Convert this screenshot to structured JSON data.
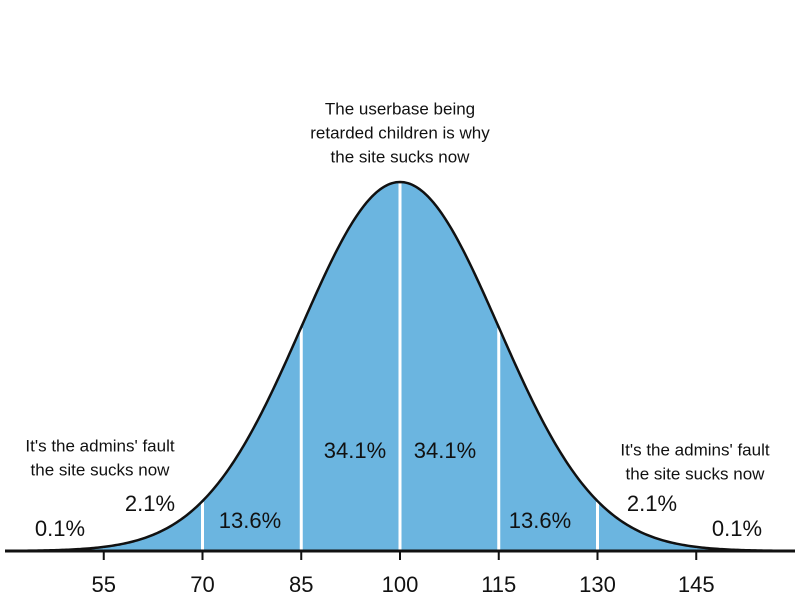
{
  "chart_data": {
    "type": "bell",
    "xlim": [
      40,
      160
    ],
    "xticks": [
      55,
      70,
      85,
      100,
      115,
      130,
      145
    ],
    "regions": {
      "values": [
        0.1,
        2.1,
        13.6,
        34.1,
        34.1,
        13.6,
        2.1,
        0.1
      ],
      "value_labels": [
        "0.1%",
        "2.1%",
        "13.6%",
        "34.1%",
        "34.1%",
        "13.6%",
        "2.1%",
        "0.1%"
      ],
      "color": "#6bb5e0"
    },
    "annotations": [
      {
        "lines": [
          "The userbase being",
          "retarded children is why",
          "the site sucks now"
        ]
      },
      {
        "lines": [
          "It's the admins' fault",
          "the site sucks now"
        ]
      },
      {
        "lines": [
          "It's the admins' fault",
          "the site sucks now"
        ]
      }
    ]
  }
}
